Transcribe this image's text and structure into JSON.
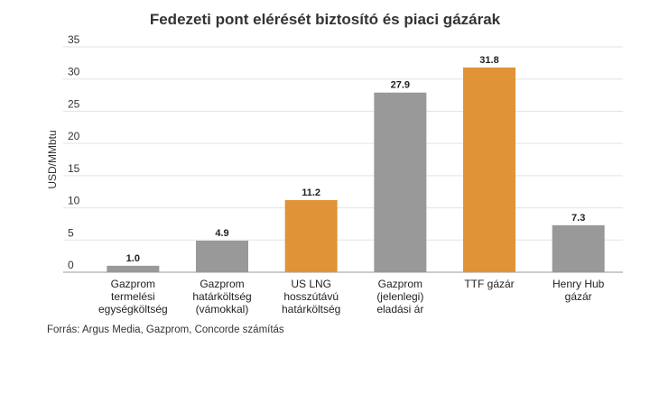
{
  "chart_data": {
    "type": "bar",
    "title": "Fedezeti pont elérését biztosító és piaci gázárak",
    "ylabel": "USD/MMbtu",
    "xlabel": "",
    "ylim": [
      0,
      35
    ],
    "yticks": [
      0,
      5,
      10,
      15,
      20,
      25,
      30,
      35
    ],
    "grid": true,
    "categories": [
      [
        "Gazprom",
        "termelési",
        "egységköltség"
      ],
      [
        "Gazprom",
        "határköltség",
        "(vámokkal)"
      ],
      [
        "US LNG",
        "hosszútávú",
        "határköltség"
      ],
      [
        "Gazprom",
        "(jelenlegi)",
        "eladási ár"
      ],
      [
        "TTF gázár"
      ],
      [
        "Henry Hub",
        "gázár"
      ]
    ],
    "values": [
      1.0,
      4.9,
      11.2,
      27.9,
      31.8,
      7.3
    ],
    "value_labels": [
      "1.0",
      "4.9",
      "11.2",
      "27.9",
      "31.8",
      "7.3"
    ],
    "bar_colors": [
      "#999999",
      "#999999",
      "#E09437",
      "#999999",
      "#E09437",
      "#999999"
    ]
  },
  "source": "Forrás: Argus Media, Gazprom, Concorde számítás"
}
